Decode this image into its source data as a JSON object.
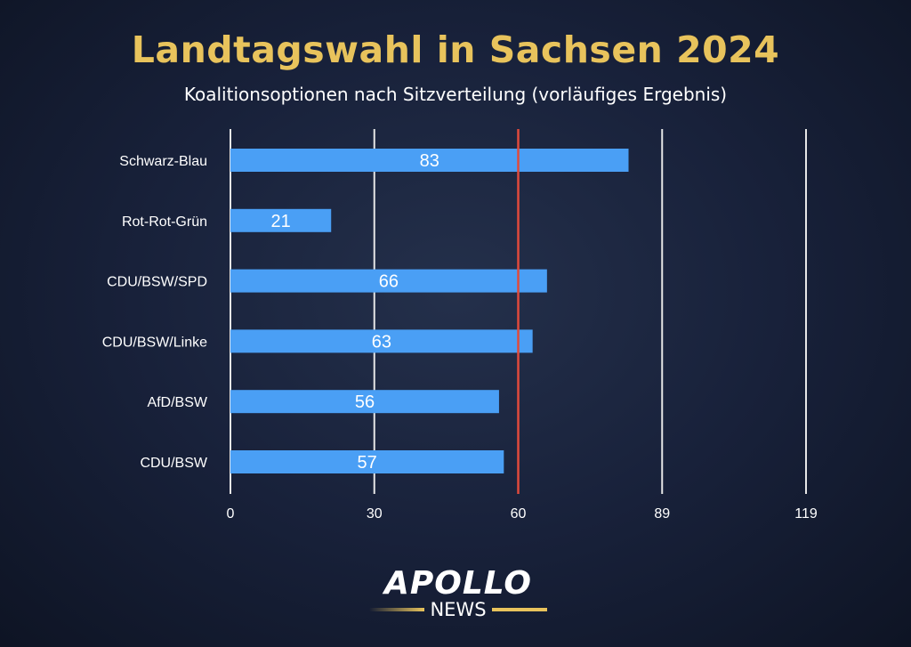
{
  "chart_data": {
    "type": "bar",
    "orientation": "horizontal",
    "title": "Landtagswahl in Sachsen 2024",
    "subtitle": "Koalitionsoptionen nach Sitzverteilung (vorläufiges Ergebnis)",
    "categories": [
      "Schwarz-Blau",
      "Rot-Rot-Grün",
      "CDU/BSW/SPD",
      "CDU/BSW/Linke",
      "AfD/BSW",
      "CDU/BSW"
    ],
    "values": [
      83,
      21,
      66,
      63,
      56,
      57
    ],
    "xticks": [
      0,
      30,
      60,
      89,
      119
    ],
    "xlim": [
      0,
      120
    ],
    "majority_line": 60,
    "grid": true,
    "bar_color": "#4a9ff5",
    "majority_color": "#e04a3c",
    "xlabel": "",
    "ylabel": ""
  },
  "logo": {
    "main": "APOLLO",
    "sub": "NEWS"
  }
}
